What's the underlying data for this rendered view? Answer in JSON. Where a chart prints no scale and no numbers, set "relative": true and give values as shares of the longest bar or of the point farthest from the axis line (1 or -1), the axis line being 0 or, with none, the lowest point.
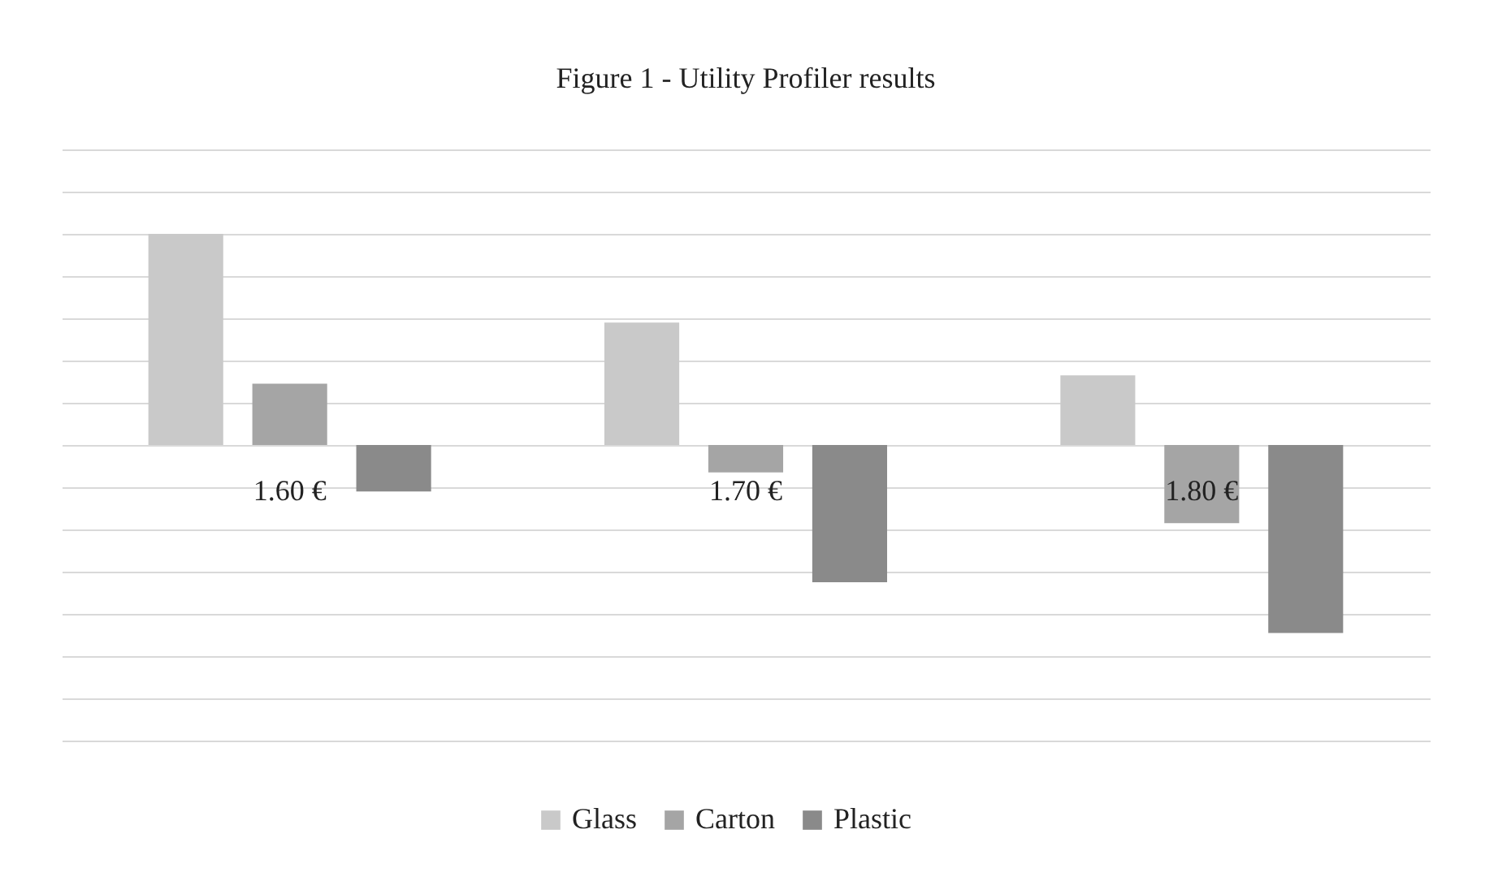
{
  "chart_data": {
    "type": "bar",
    "title": "Figure 1 - Utility Profiler results",
    "relative": true,
    "grid": "y",
    "legend": "bottom",
    "categories": [
      "1.60 €",
      "1.70 €",
      "1.80 €"
    ],
    "series": [
      {
        "name": "Glass",
        "color": "#c9c9c9",
        "values": [
          1,
          0.58,
          0.33
        ]
      },
      {
        "name": "Carton",
        "color": "#a5a5a5",
        "values": [
          0.29,
          -0.13,
          -0.37
        ]
      },
      {
        "name": "Plastic",
        "color": "#8a8a8a",
        "values": [
          -0.22,
          -0.65,
          -0.89
        ]
      }
    ]
  }
}
